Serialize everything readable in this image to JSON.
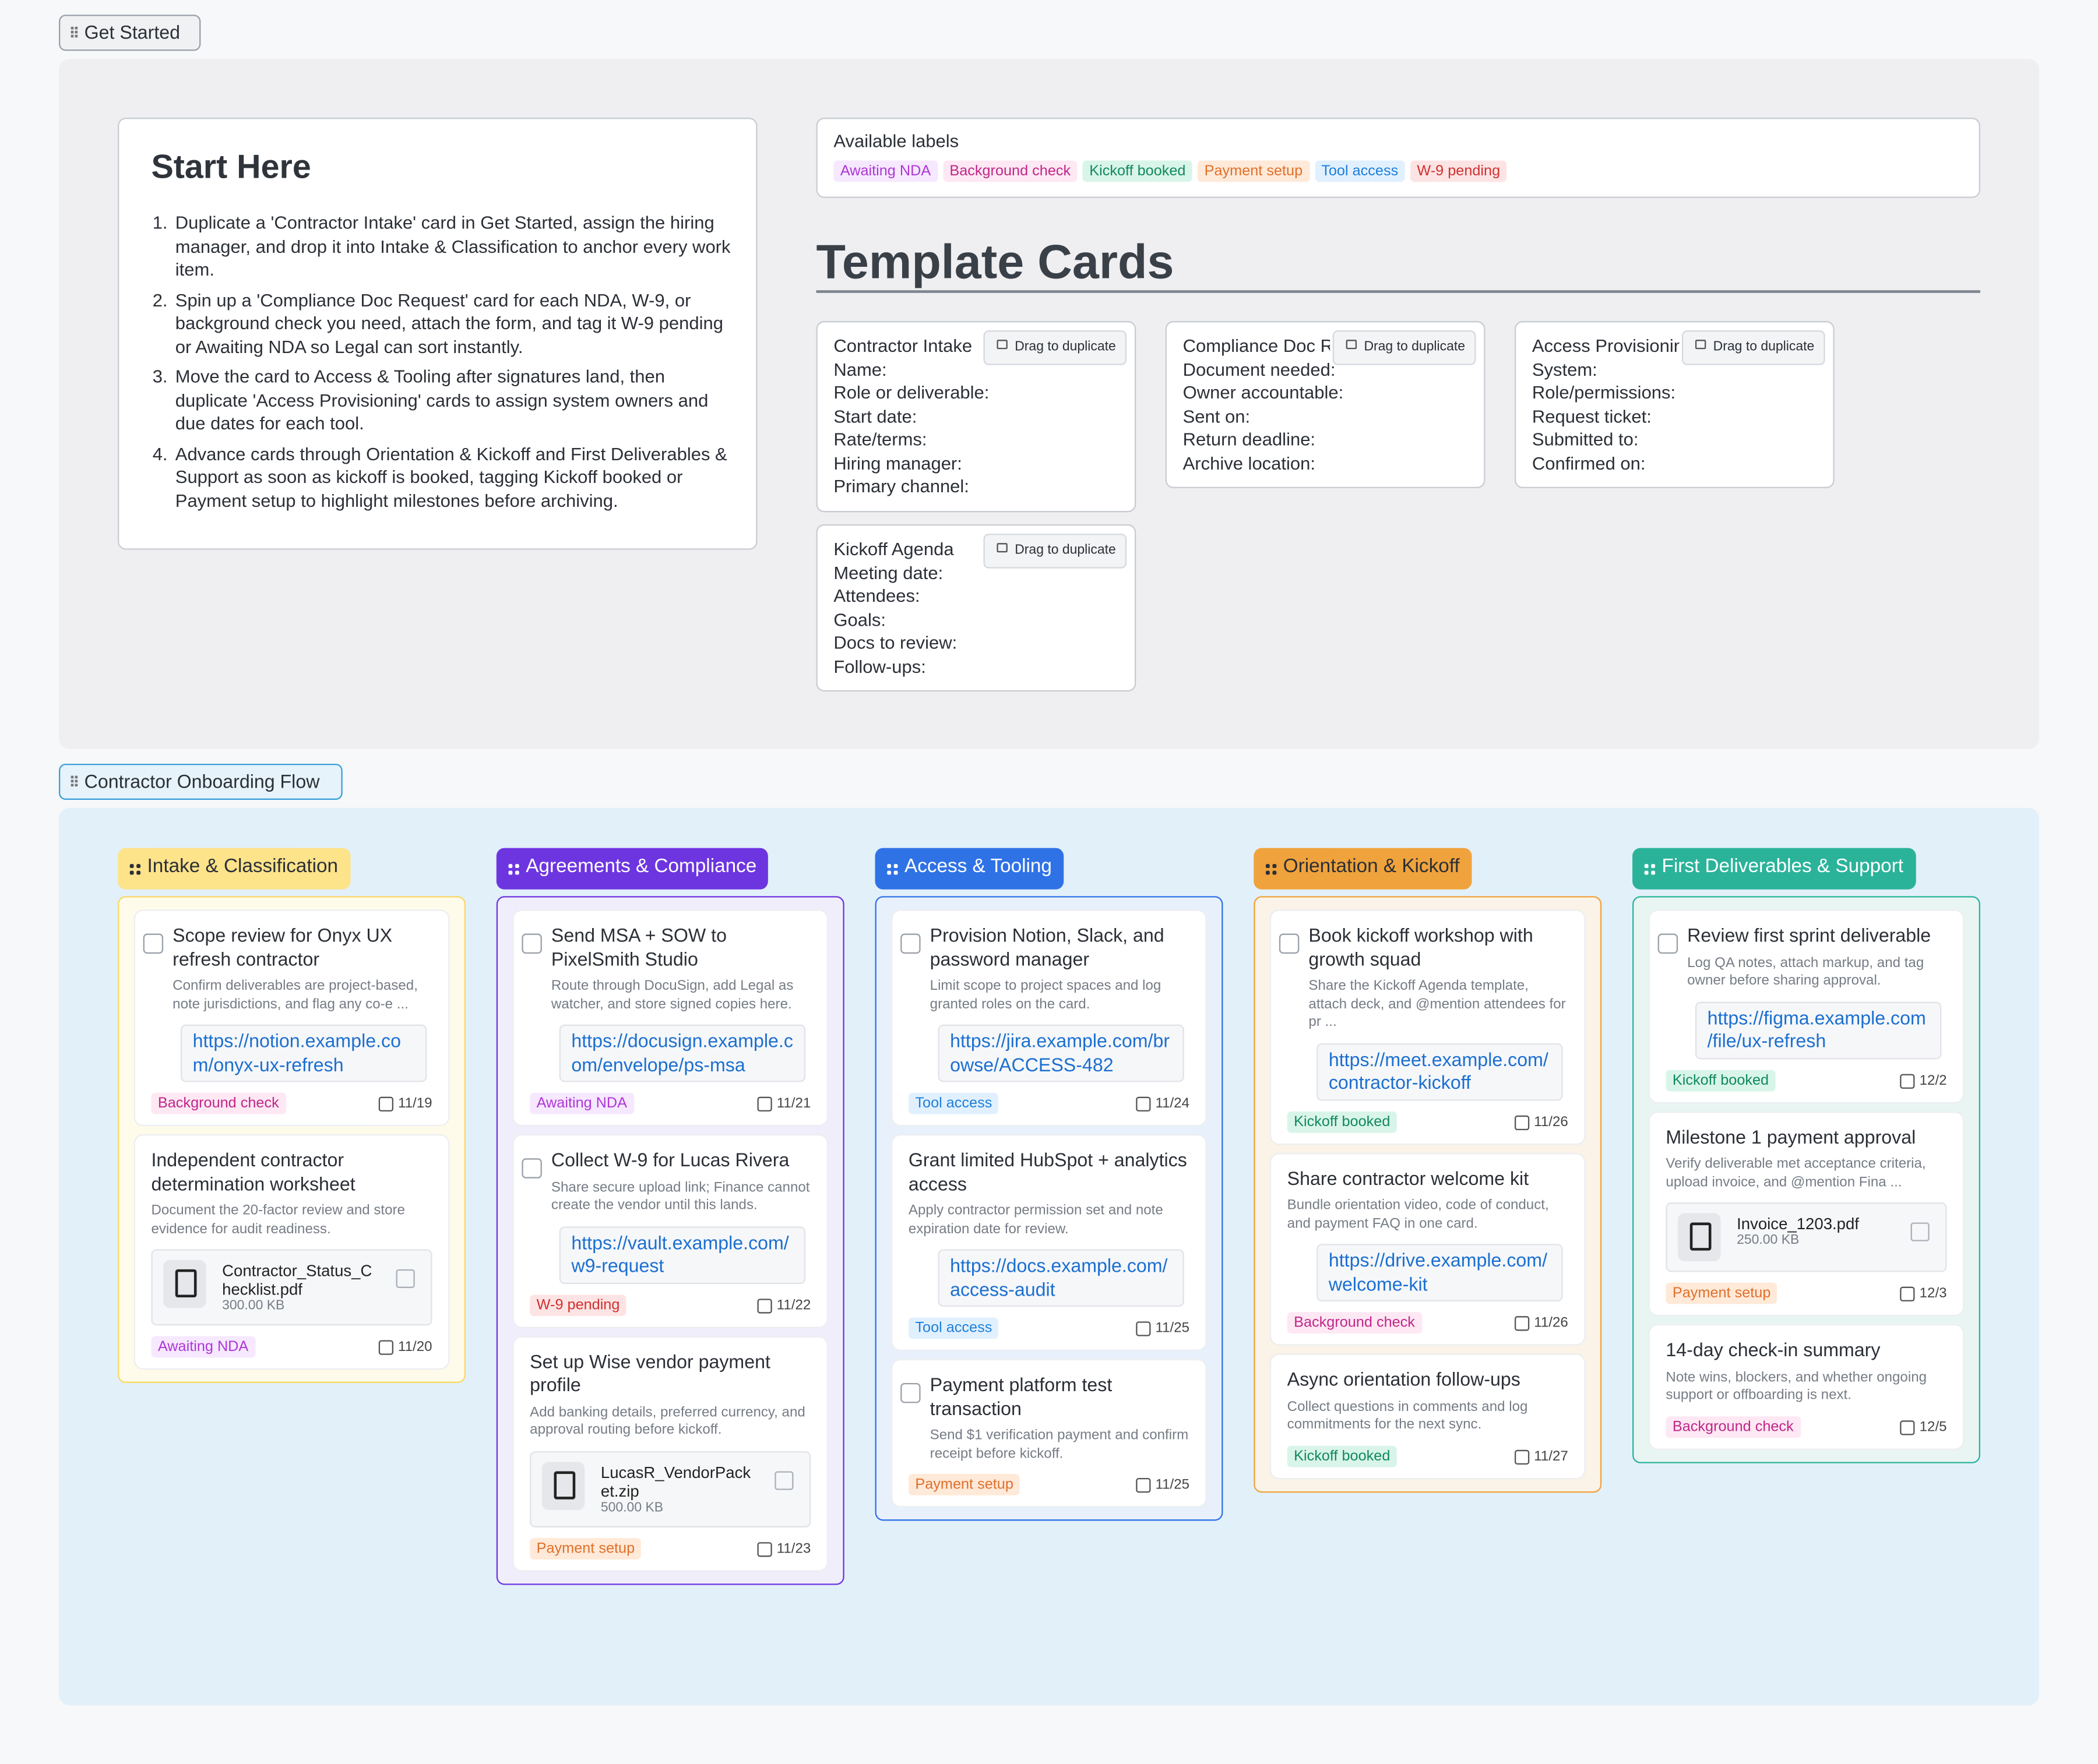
{
  "frames": {
    "get_started": "Get Started",
    "flow": "Contractor Onboarding Flow"
  },
  "start_here": {
    "title": "Start Here",
    "steps": [
      "Duplicate a 'Contractor Intake' card in Get Started, assign the hiring manager, and drop it into Intake & Classification to anchor every work item.",
      "Spin up a 'Compliance Doc Request' card for each NDA, W-9, or background check you need, attach the form, and tag it W-9 pending or Awaiting NDA so Legal can sort instantly.",
      "Move the card to Access & Tooling after signatures land, then duplicate 'Access Provisioning' cards to assign system owners and due dates for each tool.",
      "Advance cards through Orientation & Kickoff and First Deliverables & Support as soon as kickoff is booked, tagging Kickoff booked or Payment setup to highlight milestones before archiving."
    ]
  },
  "labels_panel": {
    "title": "Available labels",
    "labels": [
      {
        "name": "Awaiting NDA",
        "color": "#b035d8",
        "background": "#f6e9ff"
      },
      {
        "name": "Background check",
        "color": "#c0268a",
        "background": "#fde8f3"
      },
      {
        "name": "Kickoff booked",
        "color": "#13895d",
        "background": "#d9f5ea"
      },
      {
        "name": "Payment setup",
        "color": "#e0702a",
        "background": "#ffe9d8"
      },
      {
        "name": "Tool access",
        "color": "#1d7fd8",
        "background": "#e1f0ff"
      },
      {
        "name": "W-9 pending",
        "color": "#d13030",
        "background": "#fde4e4"
      }
    ]
  },
  "templates": {
    "title": "Template Cards",
    "drag_hint": "Drag to duplicate",
    "cards": [
      {
        "title": "Contractor Intake",
        "fields": [
          "Name:",
          "Role or deliverable:",
          "Start date:",
          "Rate/terms:",
          "Hiring manager:",
          "Primary channel:"
        ]
      },
      {
        "title": "Compliance Doc Request",
        "fields": [
          "Document needed:",
          "Owner accountable:",
          "Sent on:",
          "Return deadline:",
          "Archive location:"
        ]
      },
      {
        "title": "Access Provisioning",
        "fields": [
          "System:",
          "Role/permissions:",
          "Request ticket:",
          "Submitted to:",
          "Confirmed on:"
        ]
      },
      {
        "title": "Kickoff Agenda",
        "fields": [
          "Meeting date:",
          "Attendees:",
          "Goals:",
          "Docs to review:",
          "Follow-ups:"
        ]
      }
    ]
  },
  "board": {
    "columns": [
      {
        "title": "Intake & Classification",
        "color": "#2b2f36",
        "header": "#fde38a",
        "background": "#fffbea",
        "border": "#f8d866",
        "cards": [
          {
            "title": "Scope review for Onyx UX refresh contractor",
            "checkbox": true,
            "description": "Confirm deliverables are project-based, note jurisdictions, and flag any co-e ...",
            "link": "https://notion.example.com/onyx-ux-refresh",
            "label": "Background check",
            "date": "11/19"
          },
          {
            "title": "Independent contractor determination worksheet",
            "checkbox": false,
            "description": "Document the 20-factor review and store evidence for audit readiness.",
            "file": {
              "name": "Contractor_Status_Checklist.pdf",
              "size": "300.00 KB"
            },
            "label": "Awaiting NDA",
            "date": "11/20"
          }
        ]
      },
      {
        "title": "Agreements & Compliance",
        "color": "#ffffff",
        "header": "#6d35e0",
        "background": "#f1eefb",
        "border": "#6d35e0",
        "cards": [
          {
            "title": "Send MSA + SOW to PixelSmith Studio",
            "checkbox": true,
            "description": "Route through DocuSign, add Legal as watcher, and store signed copies here.",
            "link": "https://docusign.example.com/envelope/ps-msa",
            "label": "Awaiting NDA",
            "date": "11/21"
          },
          {
            "title": "Collect W-9 for Lucas Rivera",
            "checkbox": true,
            "description": "Share secure upload link; Finance cannot create the vendor until this lands.",
            "link": "https://vault.example.com/w9-request",
            "label": "W-9 pending",
            "date": "11/22"
          },
          {
            "title": "Set up Wise vendor payment profile",
            "checkbox": false,
            "description": "Add banking details, preferred currency, and approval routing before kickoff.",
            "file": {
              "name": "LucasR_VendorPacket.zip",
              "size": "500.00 KB"
            },
            "label": "Payment setup",
            "date": "11/23"
          }
        ]
      },
      {
        "title": "Access & Tooling",
        "color": "#ffffff",
        "header": "#2f72e6",
        "background": "#e8f1fb",
        "border": "#2f72e6",
        "cards": [
          {
            "title": "Provision Notion, Slack, and password manager",
            "checkbox": true,
            "description": "Limit scope to project spaces and log granted roles on the card.",
            "link": "https://jira.example.com/browse/ACCESS-482",
            "label": "Tool access",
            "date": "11/24"
          },
          {
            "title": "Grant limited HubSpot + analytics access",
            "checkbox": false,
            "description": "Apply contractor permission set and note expiration date for review.",
            "link": "https://docs.example.com/access-audit",
            "label": "Tool access",
            "date": "11/25"
          },
          {
            "title": "Payment platform test transaction",
            "checkbox": true,
            "description": "Send $1 verification payment and confirm receipt before kickoff.",
            "label": "Payment setup",
            "date": "11/25"
          }
        ]
      },
      {
        "title": "Orientation & Kickoff",
        "color": "#2b2f36",
        "header": "#f0a33c",
        "background": "#fbf3e7",
        "border": "#f0a33c",
        "cards": [
          {
            "title": "Book kickoff workshop with growth squad",
            "checkbox": true,
            "description": "Share the Kickoff Agenda template, attach deck, and @mention attendees for pr ...",
            "link": "https://meet.example.com/contractor-kickoff",
            "label": "Kickoff booked",
            "date": "11/26"
          },
          {
            "title": "Share contractor welcome kit",
            "checkbox": false,
            "description": "Bundle orientation video, code of conduct, and payment FAQ in one card.",
            "link": "https://drive.example.com/welcome-kit",
            "label": "Background check",
            "date": "11/26"
          },
          {
            "title": "Async orientation follow-ups",
            "checkbox": false,
            "description": "Collect questions in comments and log commitments for the next sync.",
            "label": "Kickoff booked",
            "date": "11/27"
          }
        ]
      },
      {
        "title": "First Deliverables & Support",
        "color": "#ffffff",
        "header": "#2bb39a",
        "background": "#e9f5f3",
        "border": "#2bb39a",
        "cards": [
          {
            "title": "Review first sprint deliverable",
            "checkbox": true,
            "description": "Log QA notes, attach markup, and tag owner before sharing approval.",
            "link": "https://figma.example.com/file/ux-refresh",
            "label": "Kickoff booked",
            "date": "12/2"
          },
          {
            "title": "Milestone 1 payment approval",
            "checkbox": false,
            "description": "Verify deliverable met acceptance criteria, upload invoice, and @mention Fina ...",
            "file": {
              "name": "Invoice_1203.pdf",
              "size": "250.00 KB"
            },
            "label": "Payment setup",
            "date": "12/3"
          },
          {
            "title": "14-day check-in summary",
            "checkbox": false,
            "description": "Note wins, blockers, and whether ongoing support or offboarding is next.",
            "label": "Background check",
            "date": "12/5"
          }
        ]
      }
    ]
  }
}
